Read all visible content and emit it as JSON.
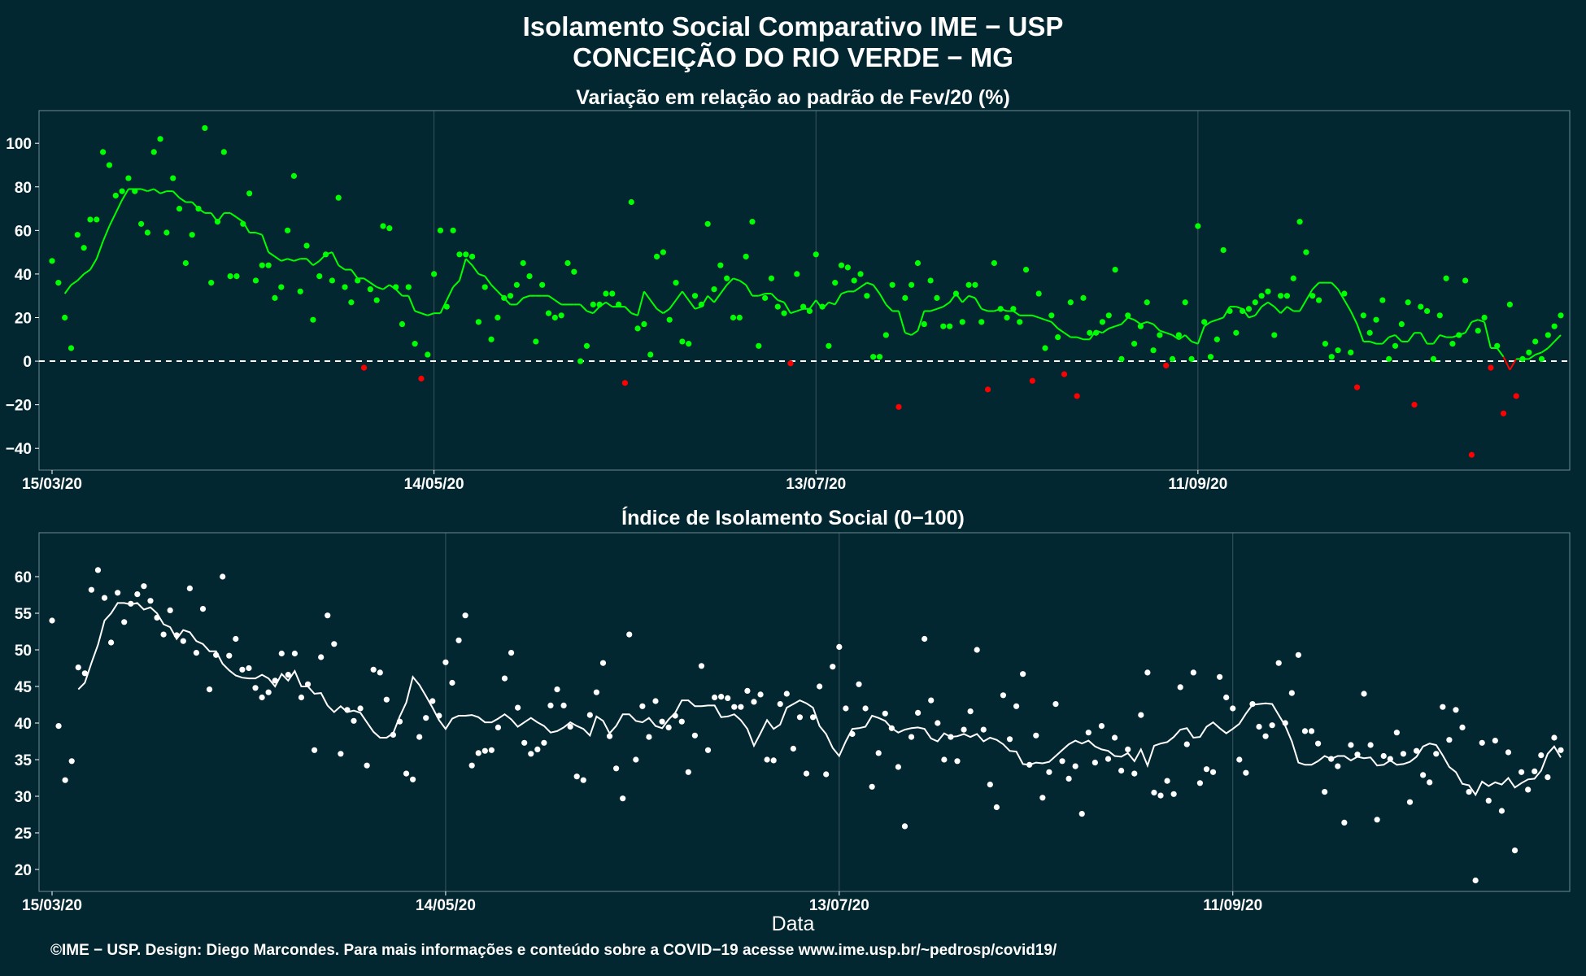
{
  "titles": {
    "line1": "Isolamento Social Comparativo IME − USP",
    "line2": "CONCEIÇÃO DO RIO VERDE − MG"
  },
  "footer": "©IME − USP. Design: Diego Marcondes. Para mais informações e conteúdo sobre a COVID−19 acesse www.ime.usp.br/~pedrosp/covid19/",
  "colors": {
    "background": "#022731",
    "panel_border": "#6f8a92",
    "grid": "#3a5560",
    "green": "#00ff00",
    "red": "#ff0000",
    "white": "#ffffff"
  },
  "chart_data": [
    {
      "type": "scatter",
      "title": "Variação em relação ao padrão de Fev/20 (%)",
      "xlabel": "",
      "ylabel": "",
      "x_range": [
        "2020-03-15",
        "2020-11-08"
      ],
      "ylim": [
        -50,
        115
      ],
      "yticks": [
        100,
        80,
        60,
        40,
        20,
        0,
        -20,
        -40
      ],
      "xtick_labels": [
        "15/03/20",
        "14/05/20",
        "13/07/20",
        "11/09/20"
      ],
      "reference_line": 0,
      "point_colors": {
        "positive": "green",
        "negative": "red"
      },
      "values": [
        46,
        36,
        20,
        6,
        58,
        52,
        65,
        65,
        96,
        90,
        76,
        78,
        84,
        78,
        63,
        59,
        96,
        102,
        59,
        84,
        70,
        45,
        58,
        70,
        107,
        36,
        64,
        96,
        39,
        39,
        63,
        77,
        37,
        44,
        44,
        29,
        34,
        60,
        85,
        32,
        53,
        19,
        39,
        49,
        37,
        75,
        34,
        27,
        37,
        -3,
        33,
        28,
        62,
        61,
        34,
        17,
        34,
        8,
        -8,
        3,
        40,
        60,
        25,
        60,
        49,
        49,
        48,
        18,
        34,
        10,
        20,
        29,
        30,
        35,
        45,
        39,
        9,
        35,
        22,
        20,
        21,
        45,
        41,
        0,
        7,
        26,
        26,
        31,
        31,
        26,
        -10,
        73,
        15,
        17,
        3,
        48,
        50,
        19,
        36,
        9,
        8,
        30,
        26,
        63,
        33,
        44,
        38,
        20,
        20,
        48,
        64,
        7,
        29,
        38,
        25,
        22,
        -1,
        40,
        25,
        23,
        49,
        25,
        7,
        36,
        44,
        43,
        37,
        40,
        30,
        2,
        2,
        12,
        35,
        -21,
        29,
        35,
        45,
        17,
        37,
        29,
        16,
        16,
        31,
        18,
        35,
        35,
        18,
        -13,
        45,
        24,
        20,
        24,
        18,
        42,
        -9,
        31,
        6,
        21,
        11,
        -6,
        27,
        -16,
        29,
        13,
        13,
        18,
        21,
        42,
        1,
        21,
        8,
        16,
        27,
        5,
        12,
        -2,
        1,
        12,
        27,
        1,
        62,
        18,
        2,
        10,
        51,
        23,
        13,
        23,
        24,
        27,
        30,
        32,
        12,
        30,
        30,
        38,
        64,
        50,
        30,
        28,
        8,
        2,
        5,
        31,
        4,
        -12,
        21,
        13,
        19,
        28,
        1,
        7,
        17,
        27,
        -20,
        25,
        23,
        1,
        21,
        38,
        8,
        12,
        37,
        -43,
        14,
        20,
        -3,
        7,
        -24,
        26,
        -16,
        1,
        4,
        9,
        1,
        12,
        16,
        21
      ],
      "moving_average": [
        31,
        35,
        37,
        40,
        42,
        47,
        55,
        62,
        68,
        74,
        79,
        79,
        79,
        78,
        79,
        77,
        78,
        78,
        75,
        73,
        73,
        70,
        68,
        68,
        64,
        68,
        68,
        66,
        64,
        59,
        59,
        58,
        50,
        48,
        46,
        47,
        46,
        47,
        47,
        44,
        46,
        49,
        50,
        44,
        42,
        42,
        38,
        38,
        36,
        34,
        33,
        35,
        33,
        30,
        30,
        23,
        22,
        21,
        22,
        22,
        28,
        34,
        37,
        47,
        44,
        40,
        39,
        35,
        32,
        29,
        26,
        26,
        29,
        30,
        30,
        30,
        30,
        28,
        26,
        26,
        26,
        26,
        23,
        22,
        25,
        27,
        25,
        25,
        25,
        22,
        21,
        32,
        28,
        24,
        22,
        24,
        28,
        32,
        28,
        24,
        25,
        30,
        27,
        31,
        35,
        38,
        37,
        35,
        30,
        30,
        31,
        31,
        28,
        27,
        22,
        23,
        24,
        24,
        28,
        24,
        27,
        26,
        31,
        32,
        32,
        34,
        36,
        35,
        31,
        26,
        23,
        23,
        13,
        12,
        14,
        23,
        23,
        24,
        25,
        27,
        31,
        27,
        30,
        29,
        24,
        23,
        23,
        24,
        23,
        23,
        21,
        21,
        21,
        20,
        19,
        18,
        15,
        13,
        11,
        11,
        10,
        10,
        14,
        13,
        15,
        16,
        17,
        20,
        19,
        17,
        18,
        17,
        14,
        13,
        12,
        10,
        12,
        9,
        8,
        16,
        18,
        19,
        20,
        25,
        25,
        24,
        20,
        21,
        25,
        27,
        25,
        22,
        25,
        23,
        23,
        28,
        33,
        36,
        36,
        36,
        33,
        28,
        23,
        17,
        9,
        9,
        8,
        8,
        11,
        12,
        9,
        9,
        13,
        13,
        8,
        8,
        12,
        11,
        11,
        12,
        13,
        18,
        19,
        18,
        6,
        6,
        2,
        -4,
        1,
        1,
        1,
        3,
        4,
        6,
        9,
        12
      ]
    },
    {
      "type": "scatter",
      "title": "Índice de Isolamento Social (0−100)",
      "xlabel": "Data",
      "ylabel": "",
      "x_range": [
        "2020-03-15",
        "2020-11-08"
      ],
      "ylim": [
        17,
        66
      ],
      "yticks": [
        60,
        55,
        50,
        45,
        40,
        35,
        30,
        25,
        20
      ],
      "xtick_labels": [
        "15/03/20",
        "14/05/20",
        "13/07/20",
        "11/09/20"
      ],
      "values": [
        54,
        39.6,
        32.2,
        34.8,
        47.6,
        46.8,
        58.2,
        60.9,
        57.1,
        51,
        57.8,
        53.8,
        56.3,
        57.6,
        58.7,
        56.7,
        54.4,
        52.1,
        55.4,
        52,
        51.2,
        58.4,
        49.6,
        55.6,
        44.6,
        49.3,
        60,
        49.2,
        51.5,
        47.3,
        47.5,
        44.8,
        43.5,
        44.2,
        45.8,
        49.5,
        46.6,
        49.5,
        43.5,
        45.3,
        36.3,
        49,
        54.7,
        50.8,
        35.8,
        41.8,
        40.3,
        42,
        34.2,
        47.3,
        46.9,
        43.2,
        38.4,
        40.2,
        33.1,
        32.3,
        38.1,
        40.7,
        43,
        41,
        48.3,
        45.5,
        51.3,
        54.7,
        34.2,
        35.9,
        36.2,
        36.3,
        39.4,
        46.1,
        49.6,
        42.1,
        37.3,
        35.8,
        36.4,
        37.3,
        42.4,
        44.6,
        42.4,
        39.5,
        32.7,
        32.2,
        41.1,
        44.2,
        48.2,
        38.2,
        33.8,
        29.7,
        52.1,
        35,
        42.3,
        38.1,
        43,
        40.2,
        39.4,
        41,
        40.2,
        33.3,
        38.3,
        47.8,
        36.3,
        43.5,
        43.6,
        43.4,
        42.2,
        42.2,
        44.4,
        42.9,
        43.9,
        35,
        34.9,
        42.6,
        44,
        36.5,
        40.8,
        33.1,
        40.8,
        45,
        33,
        47.7,
        50.4,
        42,
        38.5,
        45.3,
        42,
        31.3,
        35.9,
        41.3,
        39.3,
        34,
        25.9,
        38.1,
        41.4,
        51.5,
        43.1,
        40,
        35,
        38.1,
        34.8,
        39.1,
        41.6,
        50,
        39.1,
        31.6,
        28.5,
        43.8,
        37.8,
        42.3,
        46.7,
        34.3,
        38.3,
        29.8,
        33.3,
        42.6,
        34.8,
        32.4,
        34.1,
        27.6,
        38.7,
        34.6,
        39.6,
        35.1,
        38,
        33.5,
        36.4,
        33.1,
        41.1,
        46.9,
        30.5,
        30.1,
        32.1,
        30.3,
        44.9,
        37.1,
        46.9,
        31.8,
        33.7,
        33.3,
        46.3,
        43.5,
        42,
        35,
        33.2,
        42.6,
        39.5,
        38.2,
        39.7,
        48.2,
        40,
        44.1,
        49.3,
        38.9,
        38.9,
        37.2,
        30.6,
        35.1,
        34.1,
        26.4,
        37,
        35.7,
        44,
        37,
        26.8,
        35.5,
        35.1,
        38.7,
        35.8,
        29.2,
        36.2,
        32.9,
        31.9,
        35.8,
        42.2,
        37.7,
        41.8,
        39.4,
        30.6,
        18.5,
        37.3,
        29.4,
        37.6,
        28,
        36,
        22.6,
        33.3,
        30.9,
        33.4,
        35.6,
        32.6,
        38,
        36.3
      ],
      "moving_average": [
        44.6,
        45.5,
        48.2,
        50.7,
        54,
        55,
        56.4,
        56.4,
        56.2,
        56.4,
        55.5,
        55.8,
        55,
        53.5,
        53.1,
        51.5,
        52.7,
        52.4,
        51.2,
        50.8,
        49.8,
        49.8,
        48.1,
        47.2,
        46.5,
        46.2,
        46.1,
        46.1,
        46.6,
        46.1,
        45,
        46.7,
        45.8,
        47.1,
        45,
        45,
        44,
        44.1,
        42.4,
        41.5,
        42.3,
        41.5,
        41.7,
        41.4,
        40.1,
        38.8,
        38,
        38,
        38.6,
        40.9,
        42.8,
        46.3,
        45.2,
        43.7,
        42.1,
        40.4,
        39.2,
        40.6,
        41,
        41,
        41.1,
        40.8,
        40.1,
        40.1,
        40.6,
        41.2,
        40.5,
        39.5,
        40.1,
        40.7,
        40.1,
        39.6,
        38.7,
        38.9,
        39.4,
        40.1,
        39.6,
        39.2,
        38.3,
        40.9,
        40.3,
        38.6,
        39.6,
        41.2,
        41.2,
        40.3,
        40.1,
        40.7,
        39.6,
        39.3,
        40.5,
        41.4,
        43.1,
        43.1,
        42.3,
        42.3,
        42.4,
        42.4,
        40.8,
        40.9,
        41.2,
        40.4,
        39.2,
        36.9,
        38.6,
        40.4,
        39.2,
        39.8,
        42.1,
        42.6,
        43.1,
        42.7,
        42.1,
        39.6,
        38.5,
        36.6,
        35.5,
        37.5,
        39.2,
        39.3,
        39.5,
        41,
        40.7,
        40.3,
        39.3,
        38.7,
        39.1,
        39.3,
        39.4,
        39.2,
        37.9,
        37.5,
        38.6,
        38.1,
        38.2,
        38.5,
        38.1,
        38.5,
        37.5,
        38,
        37.7,
        37.1,
        36.2,
        36.1,
        34.4,
        34.3,
        34.6,
        34.5,
        34.7,
        35.5,
        36.3,
        37.1,
        37.6,
        37.2,
        37.6,
        36.8,
        36.4,
        36.2,
        35.5,
        35.4,
        35.9,
        34.8,
        36.4,
        34.2,
        36.9,
        37.2,
        37.4,
        38.1,
        39.1,
        39.3,
        38,
        38.1,
        39.5,
        40.1,
        39.3,
        38.6,
        39.2,
        39.9,
        41.3,
        42.5,
        42.6,
        42.7,
        42.6,
        41.1,
        39.6,
        37.5,
        34.6,
        34.3,
        34.3,
        34.8,
        35.5,
        35.1,
        35.5,
        35.5,
        34.9,
        35.4,
        35.2,
        35.3,
        34.2,
        34.3,
        34.9,
        34.3,
        34.4,
        34.7,
        35.4,
        36.8,
        37.2,
        37,
        35.6,
        34,
        33.3,
        31.7,
        31.5,
        30.2,
        32,
        31.4,
        31.9,
        31.6,
        32.5,
        31.2,
        31.8,
        32.3,
        32.4,
        33.5,
        35.8,
        36.8,
        35.3
      ]
    }
  ]
}
